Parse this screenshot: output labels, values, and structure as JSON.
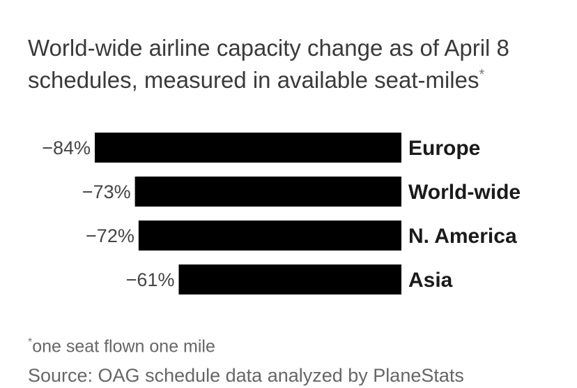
{
  "title": "World-wide airline capacity change as of April 8 schedules, measured in available seat-miles",
  "title_marker": "*",
  "footnote": {
    "marker": "*",
    "text": "one seat flown one mile"
  },
  "source": "Source: OAG schedule data analyzed by PlaneStats",
  "colors": {
    "bar": "#000000",
    "value_text": "#444444",
    "category_text": "#1a1a1a",
    "title_text": "#3a3a3a",
    "note_text": "#666666"
  },
  "chart_data": {
    "type": "bar",
    "orientation": "horizontal",
    "categories": [
      "Europe",
      "World-wide",
      "N. America",
      "Asia"
    ],
    "values": [
      -84,
      -73,
      -72,
      -61
    ],
    "value_labels": [
      "−84%",
      "−73%",
      "−72%",
      "−61%"
    ],
    "unit": "%",
    "title": "World-wide airline capacity change as of April 8 schedules, measured in available seat-miles",
    "xlabel": "",
    "ylabel": "",
    "xlim": [
      -84,
      0
    ],
    "grid": false,
    "legend": "none"
  }
}
